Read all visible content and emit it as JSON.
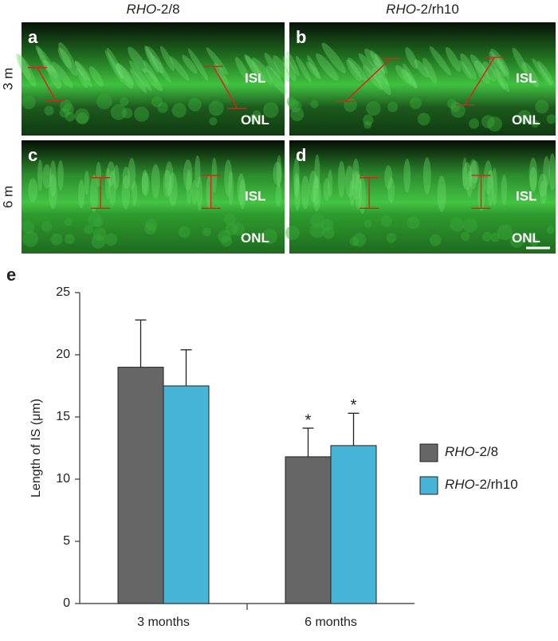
{
  "images": {
    "column_titles": [
      "RHO-2/8",
      "RHO-2/rh10"
    ],
    "row_titles": [
      "3 m",
      "6 m"
    ],
    "panels": [
      {
        "letter": "a",
        "labels": [
          "ISL",
          "ONL"
        ]
      },
      {
        "letter": "b",
        "labels": [
          "ISL",
          "ONL"
        ]
      },
      {
        "letter": "c",
        "labels": [
          "ISL",
          "ONL"
        ]
      },
      {
        "letter": "d",
        "labels": [
          "ISL",
          "ONL"
        ]
      }
    ]
  },
  "chart_data": {
    "type": "bar",
    "panel_letter": "e",
    "y_label": "Length of IS (μm)",
    "categories": [
      "3 months",
      "6 months"
    ],
    "series": [
      {
        "name": "RHO-2/8",
        "color": "#666666",
        "values": [
          19.0,
          11.8
        ],
        "errors": [
          3.8,
          2.3
        ]
      },
      {
        "name": "RHO-2/rh10",
        "color": "#47b5d8",
        "values": [
          17.5,
          12.7
        ],
        "errors": [
          2.9,
          2.6
        ]
      }
    ],
    "annotations": [
      {
        "text": "*",
        "series": 0,
        "category": 1
      },
      {
        "text": "*",
        "series": 1,
        "category": 1
      }
    ],
    "ylim": [
      0,
      25
    ],
    "yticks": [
      0,
      5,
      10,
      15,
      20,
      25
    ],
    "grid": false,
    "legend": "right"
  }
}
